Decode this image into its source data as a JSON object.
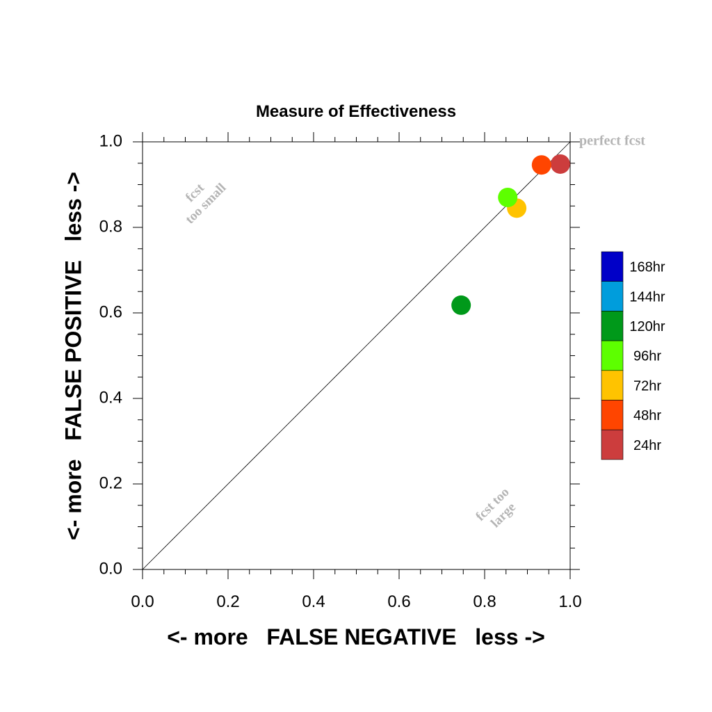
{
  "chart_data": {
    "type": "scatter",
    "title": "Measure of Effectiveness",
    "xlabel": "<- more   FALSE NEGATIVE   less ->",
    "ylabel": "<- more   FALSE POSITIVE   less ->",
    "xlim": [
      0.0,
      1.0
    ],
    "ylim": [
      0.0,
      1.0
    ],
    "x_ticks": [
      "0.0",
      "0.2",
      "0.4",
      "0.6",
      "0.8",
      "1.0"
    ],
    "y_ticks": [
      "0.0",
      "0.2",
      "0.4",
      "0.6",
      "0.8",
      "1.0"
    ],
    "grid": false,
    "reference_line": {
      "from": [
        0,
        0
      ],
      "to": [
        1,
        1
      ]
    },
    "annotations": {
      "perfect": "perfect fcst",
      "too_small_1": "fcst",
      "too_small_2": "too small",
      "too_large_1": "fcst too",
      "too_large_2": "large"
    },
    "series": [
      {
        "name": "24hr",
        "color": "#cc3d3d",
        "x": 0.977,
        "y": 0.948
      },
      {
        "name": "48hr",
        "color": "#ff4500",
        "x": 0.933,
        "y": 0.946
      },
      {
        "name": "72hr",
        "color": "#ffc300",
        "x": 0.875,
        "y": 0.845
      },
      {
        "name": "96hr",
        "color": "#5dff00",
        "x": 0.854,
        "y": 0.87
      },
      {
        "name": "120hr",
        "color": "#00991a",
        "x": 0.745,
        "y": 0.618
      }
    ],
    "legend": {
      "placement": "right",
      "entries": [
        {
          "label": "168hr",
          "color": "#0000c8"
        },
        {
          "label": "144hr",
          "color": "#009ddc"
        },
        {
          "label": "120hr",
          "color": "#00991a"
        },
        {
          "label": "96hr",
          "color": "#5dff00"
        },
        {
          "label": "72hr",
          "color": "#ffc300"
        },
        {
          "label": "48hr",
          "color": "#ff4500"
        },
        {
          "label": "24hr",
          "color": "#cc3d3d"
        }
      ]
    }
  }
}
